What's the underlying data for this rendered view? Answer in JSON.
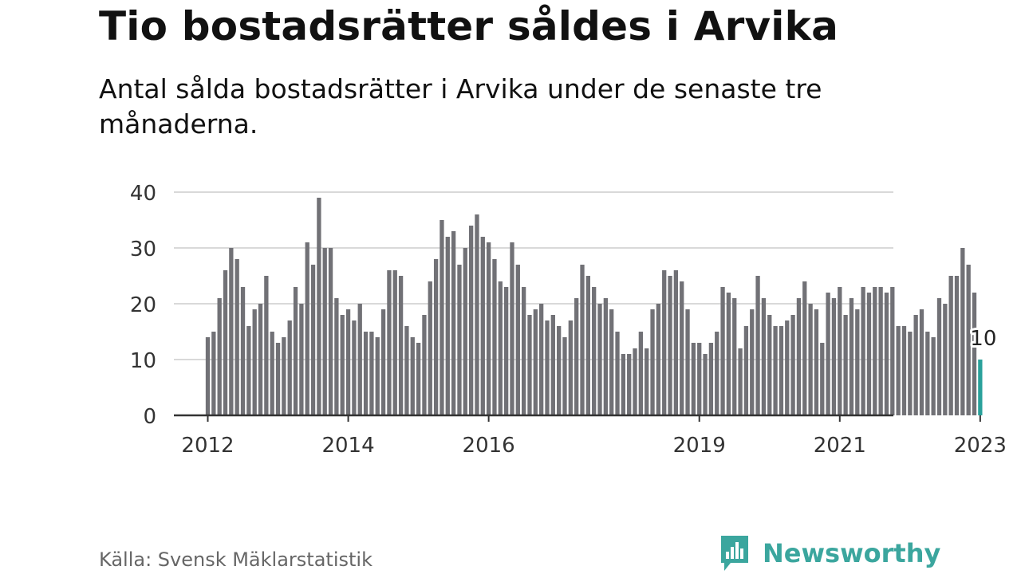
{
  "title": "Tio bostadsrätter såldes i Arvika",
  "subtitle": "Antal sålda bostadsrätter i Arvika under de senaste tre månaderna.",
  "source": "Källa: Svensk Mäklarstatistik",
  "brand": "Newsworthy",
  "colors": {
    "bar": "#717176",
    "highlight": "#2aa19b",
    "grid": "#d9d9d9",
    "axis": "#333333",
    "brand": "#3ba69e"
  },
  "chart_data": {
    "type": "bar",
    "title": "Tio bostadsrätter såldes i Arvika",
    "subtitle": "Antal sålda bostadsrätter i Arvika under de senaste tre månaderna.",
    "start_month": "2012-01",
    "x_ticks": [
      "2012",
      "2014",
      "2016",
      "2019",
      "2021",
      "2023"
    ],
    "y_ticks": [
      0,
      10,
      20,
      30,
      40
    ],
    "ylim": [
      0,
      40
    ],
    "grid": true,
    "values": [
      14,
      15,
      21,
      26,
      30,
      28,
      23,
      16,
      19,
      20,
      25,
      15,
      13,
      14,
      17,
      23,
      20,
      31,
      27,
      39,
      30,
      30,
      21,
      18,
      19,
      17,
      20,
      15,
      15,
      14,
      19,
      26,
      26,
      25,
      16,
      14,
      13,
      18,
      24,
      28,
      35,
      32,
      33,
      27,
      30,
      34,
      36,
      32,
      31,
      28,
      24,
      23,
      31,
      27,
      23,
      18,
      19,
      20,
      17,
      18,
      16,
      14,
      17,
      21,
      27,
      25,
      23,
      20,
      21,
      19,
      15,
      11,
      11,
      12,
      15,
      12,
      19,
      20,
      26,
      25,
      26,
      24,
      19,
      13,
      13,
      11,
      13,
      15,
      23,
      22,
      21,
      12,
      16,
      19,
      25,
      21,
      18,
      16,
      16,
      17,
      18,
      21,
      24,
      20,
      19,
      13,
      22,
      21,
      23,
      18,
      21,
      19,
      23,
      22,
      23,
      23,
      22,
      23,
      16,
      16,
      15,
      18,
      19,
      15,
      14,
      21,
      20,
      25,
      25,
      30,
      27,
      22,
      10
    ],
    "highlight_label": "10"
  }
}
